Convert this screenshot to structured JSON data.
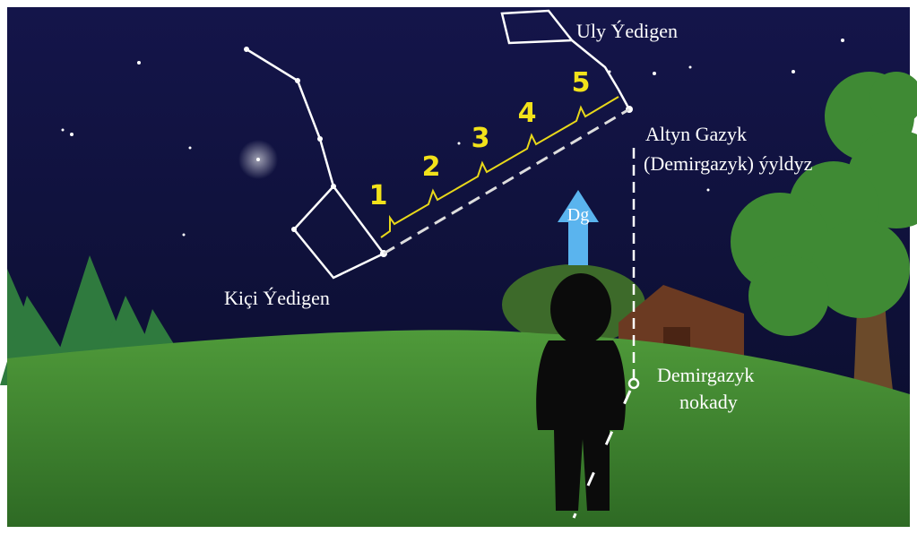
{
  "labels": {
    "big_dipper": "Uly Ýedigen",
    "polaris_line1": "Altyn Gazyk",
    "polaris_line2": "(Demirgazyk) ýyldyz",
    "little_dipper": "Kiçi Ýedigen",
    "arrow": "Dg",
    "north_point_line1": "Demirgazyk",
    "north_point_line2": "nokady"
  },
  "steps": [
    "1",
    "2",
    "3",
    "4",
    "5"
  ]
}
